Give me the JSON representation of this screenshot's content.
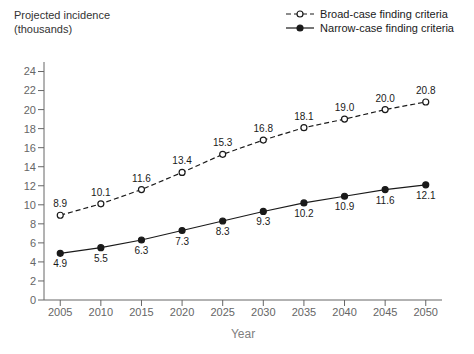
{
  "chart_data": {
    "type": "line",
    "ylabel": "Projected incidence\n(thousands)",
    "xlabel": "Year",
    "x": [
      2005,
      2010,
      2015,
      2020,
      2025,
      2030,
      2035,
      2040,
      2045,
      2050
    ],
    "xlim": [
      2003,
      2052
    ],
    "xticks": [
      2005,
      2010,
      2015,
      2020,
      2025,
      2030,
      2035,
      2040,
      2045,
      2050
    ],
    "ylim": [
      0,
      25
    ],
    "yticks": [
      0,
      2,
      4,
      6,
      8,
      10,
      12,
      14,
      16,
      18,
      20,
      22,
      24
    ],
    "grid": false,
    "legend": "top",
    "data_labels": true,
    "series": [
      {
        "name": "Broad-case finding criteria",
        "color": "#1a1a1a",
        "line_style": "dashed",
        "marker": "open_circle",
        "values": [
          8.9,
          10.1,
          11.6,
          13.4,
          15.3,
          16.8,
          18.1,
          19.0,
          20.0,
          20.8
        ],
        "value_labels": [
          "8.9",
          "10.1",
          "11.6",
          "13.4",
          "15.3",
          "16.8",
          "18.1",
          "19.0",
          "20.0",
          "20.8"
        ]
      },
      {
        "name": "Narrow-case finding criteria",
        "color": "#1a1a1a",
        "line_style": "solid",
        "marker": "circle",
        "values": [
          4.9,
          5.5,
          6.3,
          7.3,
          8.3,
          9.3,
          10.2,
          10.9,
          11.6,
          12.1
        ],
        "value_labels": [
          "4.9",
          "5.5",
          "6.3",
          "7.3",
          "8.3",
          "9.3",
          "10.2",
          "10.9",
          "11.6",
          "12.1"
        ]
      }
    ]
  }
}
